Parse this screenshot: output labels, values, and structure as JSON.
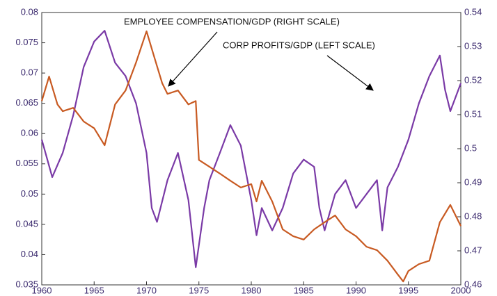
{
  "chart_data": {
    "type": "line",
    "annotations": [
      "EMPLOYEE COMPENSATION/GDP (RIGHT SCALE)",
      "CORP PROFITS/GDP (LEFT SCALE)"
    ],
    "xlim": [
      1960,
      2000
    ],
    "xticks": [
      1960,
      1965,
      1970,
      1975,
      1980,
      1985,
      1990,
      1995,
      2000
    ],
    "ylim": [
      0.035,
      0.08
    ],
    "yticks": [
      0.035,
      0.04,
      0.045,
      0.05,
      0.055,
      0.06,
      0.065,
      0.07,
      0.075,
      0.08
    ],
    "y2lim": [
      0.46,
      0.54
    ],
    "y2ticks": [
      0.46,
      0.47,
      0.48,
      0.49,
      0.5,
      0.51,
      0.52,
      0.53,
      0.54
    ],
    "series": [
      {
        "name": "CORP PROFITS/GDP",
        "color": "#7a3aa6",
        "x": [
          1960,
          1961,
          1962,
          1963,
          1964,
          1965,
          1966,
          1967,
          1968,
          1969,
          1970,
          1970.5,
          1971,
          1972,
          1973,
          1974,
          1974.7,
          1975.5,
          1976,
          1977,
          1978,
          1979,
          1980,
          1980.5,
          1981,
          1982,
          1983,
          1984,
          1985,
          1986,
          1986.5,
          1987,
          1988,
          1989,
          1990,
          1991,
          1992,
          1992.5,
          1993,
          1994,
          1995,
          1996,
          1997,
          1998,
          1998.5,
          1999,
          2000
        ],
        "values": [
          0.059,
          0.0528,
          0.0568,
          0.063,
          0.071,
          0.0752,
          0.077,
          0.0717,
          0.0695,
          0.065,
          0.0568,
          0.0477,
          0.0454,
          0.0523,
          0.0568,
          0.049,
          0.0379,
          0.0477,
          0.0523,
          0.0568,
          0.0614,
          0.058,
          0.049,
          0.0432,
          0.0477,
          0.044,
          0.0477,
          0.0534,
          0.0557,
          0.0545,
          0.0477,
          0.044,
          0.05,
          0.0523,
          0.0477,
          0.05,
          0.0523,
          0.044,
          0.0511,
          0.0545,
          0.059,
          0.065,
          0.0695,
          0.0729,
          0.0672,
          0.0637,
          0.0683
        ]
      },
      {
        "name": "EMPLOYEE COMPENSATION/GDP",
        "color": "#c85a22",
        "axis": "y2",
        "x": [
          1960,
          1960.7,
          1961.5,
          1962,
          1963,
          1964,
          1965,
          1966,
          1967,
          1968,
          1969,
          1970,
          1970.7,
          1971.5,
          1972,
          1973,
          1974,
          1974.7,
          1975,
          1976,
          1977,
          1978,
          1979,
          1980,
          1980.5,
          1981,
          1982,
          1983,
          1984,
          1985,
          1986,
          1987,
          1988,
          1989,
          1990,
          1991,
          1992,
          1993,
          1994,
          1994.5,
          1995,
          1996,
          1997,
          1998,
          1999,
          2000
        ],
        "values": [
          0.514,
          0.5212,
          0.513,
          0.511,
          0.512,
          0.508,
          0.506,
          0.501,
          0.513,
          0.5171,
          0.5253,
          0.5345,
          0.5273,
          0.5192,
          0.5161,
          0.5171,
          0.513,
          0.514,
          0.4967,
          0.4947,
          0.4927,
          0.4906,
          0.4886,
          0.4896,
          0.4845,
          0.4906,
          0.4845,
          0.4763,
          0.4743,
          0.4733,
          0.4763,
          0.4784,
          0.4804,
          0.4763,
          0.4743,
          0.4712,
          0.4702,
          0.4671,
          0.463,
          0.461,
          0.4641,
          0.4661,
          0.4671,
          0.4784,
          0.4835,
          0.4773
        ]
      }
    ]
  }
}
